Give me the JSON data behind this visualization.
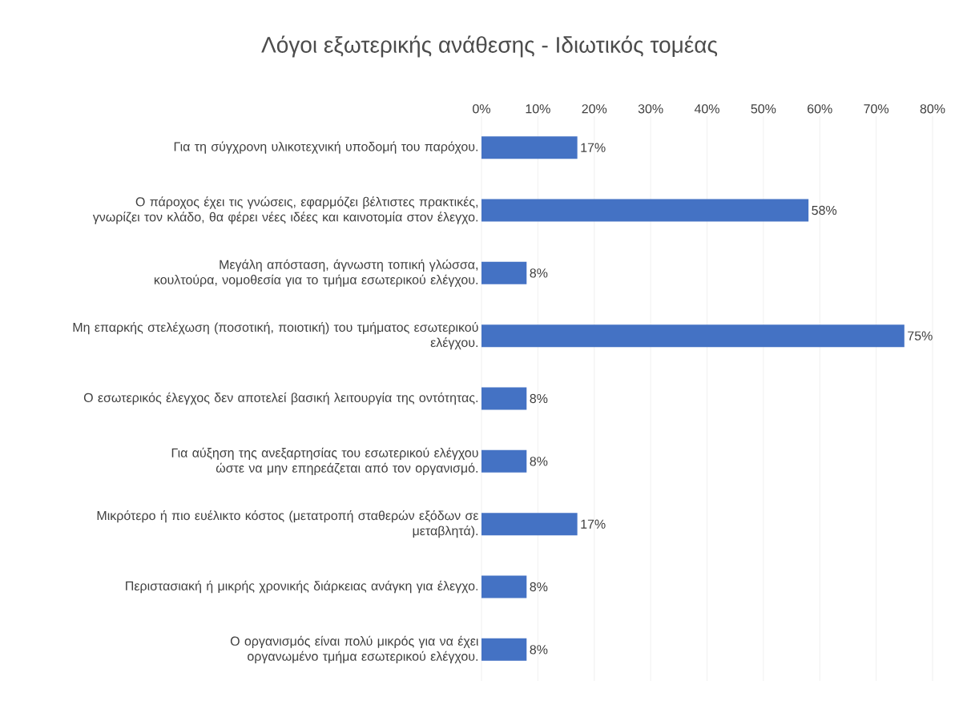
{
  "chart_data": {
    "type": "bar",
    "orientation": "horizontal",
    "title": "Λόγοι εξωτερικής ανάθεσης - Ιδιωτικός τομέας",
    "categories": [
      "Για τη σύγχρονη υλικοτεχνική υποδομή του παρόχου.",
      "Ο πάροχος έχει τις γνώσεις, εφαρμόζει βέλτιστες πρακτικές, γνωρίζει τον κλάδο, θα φέρει νέες ιδέες και καινοτομία στον έλεγχο.",
      "Μεγάλη απόσταση, άγνωστη τοπική γλώσσα, κουλτούρα, νομοθεσία για το τμήμα εσωτερικού ελέγχου.",
      "Μη επαρκής στελέχωση (ποσοτική, ποιοτική) του τμήματος εσωτερικού ελέγχου.",
      "Ο εσωτερικός έλεγχος δεν αποτελεί βασική λειτουργία της οντότητας.",
      "Για αύξηση της ανεξαρτησίας του εσωτερικού ελέγχου ώστε να μην επηρεάζεται από τον οργανισμό.",
      "Μικρότερο ή πιο ευέλικτο κόστος (μετατροπή σταθερών εξόδων σε μεταβλητά).",
      "Περιστασιακή ή μικρής χρονικής διάρκειας ανάγκη για έλεγχο.",
      "Ο οργανισμός είναι πολύ μικρός για να έχει οργανωμένο τμήμα εσωτερικού ελέγχου."
    ],
    "values": [
      17,
      58,
      8,
      75,
      8,
      8,
      17,
      8,
      8
    ],
    "value_labels": [
      "17%",
      "58%",
      "8%",
      "75%",
      "8%",
      "8%",
      "17%",
      "8%",
      "8%"
    ],
    "color": "#4472c4",
    "xlim": [
      0,
      80
    ],
    "xticks": [
      {
        "value": 0,
        "label": "0%"
      },
      {
        "value": 10,
        "label": "10%"
      },
      {
        "value": 20,
        "label": "20%"
      },
      {
        "value": 30,
        "label": "30%"
      },
      {
        "value": 40,
        "label": "40%"
      },
      {
        "value": 50,
        "label": "50%"
      },
      {
        "value": 60,
        "label": "60%"
      },
      {
        "value": 70,
        "label": "70%"
      },
      {
        "value": 80,
        "label": "80%"
      }
    ],
    "grid": "x"
  }
}
